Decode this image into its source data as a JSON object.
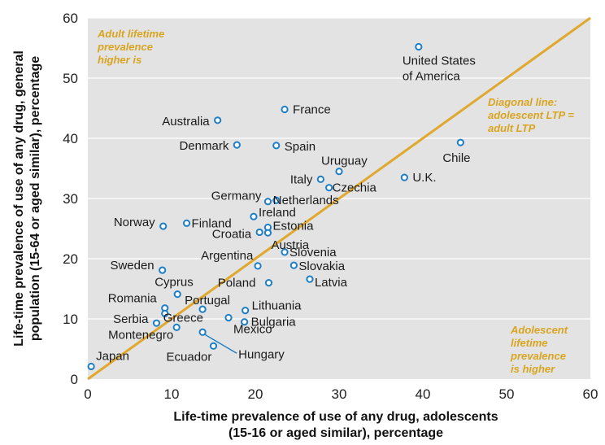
{
  "colors": {
    "plot_background": "#e3e3e3",
    "diagonal": "#e0a82e",
    "points": "#1f7fc6",
    "annotation": "#d9a520"
  },
  "annotations": {
    "top_left": [
      "Adult lifetime",
      "prevalence",
      "higher is"
    ],
    "diagonal": [
      "Diagonal line:",
      "adolescent LTP =",
      "adult LTP"
    ],
    "bottom_right": [
      "Adolescent",
      "lifetime",
      "prevalence",
      "is higher"
    ]
  },
  "chart_data": {
    "type": "scatter",
    "title": "",
    "xlabel": [
      "Life-time prevalence of use of any drug, adolescents",
      "(15-16 or aged similar), percentage"
    ],
    "ylabel": [
      "Life-time prevalence of use of any drug, general",
      "population (15-64 or aged similar), percentage"
    ],
    "xlim": [
      0,
      60
    ],
    "ylim": [
      0,
      60
    ],
    "xticks": [
      "0",
      "10",
      "20",
      "30",
      "40",
      "50",
      "60"
    ],
    "yticks": [
      "0",
      "10",
      "20",
      "30",
      "40",
      "50",
      "60"
    ],
    "grid": "horizontal",
    "reference_line": {
      "from": [
        0,
        0
      ],
      "to": [
        60,
        60
      ]
    },
    "points": [
      {
        "label": [
          "United States",
          "of America"
        ],
        "x": 39.5,
        "y": 55.2
      },
      {
        "label": [
          "France"
        ],
        "x": 23.5,
        "y": 44.8
      },
      {
        "label": [
          "Australia"
        ],
        "x": 15.5,
        "y": 43.0
      },
      {
        "label": [
          "Denmark"
        ],
        "x": 17.8,
        "y": 38.9
      },
      {
        "label": [
          "Spain"
        ],
        "x": 22.5,
        "y": 38.8
      },
      {
        "label": [
          "Chile"
        ],
        "x": 44.5,
        "y": 39.3
      },
      {
        "label": [
          "Uruguay"
        ],
        "x": 30.0,
        "y": 34.5
      },
      {
        "label": [
          "U.K."
        ],
        "x": 37.8,
        "y": 33.5
      },
      {
        "label": [
          "Italy"
        ],
        "x": 27.8,
        "y": 33.2
      },
      {
        "label": [
          "Czechia"
        ],
        "x": 28.8,
        "y": 31.8
      },
      {
        "label": [
          "Germany"
        ],
        "x": 21.5,
        "y": 29.5
      },
      {
        "label": [
          "Netherlands"
        ],
        "x": 22.5,
        "y": 29.7
      },
      {
        "label": [
          "Ireland"
        ],
        "x": 19.8,
        "y": 27.0
      },
      {
        "label": [
          "Norway"
        ],
        "x": 9.0,
        "y": 25.4
      },
      {
        "label": [
          "Finland"
        ],
        "x": 11.8,
        "y": 25.9
      },
      {
        "label": [
          "Estonia"
        ],
        "x": 21.5,
        "y": 25.2
      },
      {
        "label": [
          "Croatia"
        ],
        "x": 20.5,
        "y": 24.4
      },
      {
        "label": [
          "Austria"
        ],
        "x": 21.5,
        "y": 24.3
      },
      {
        "label": [
          "Argentina"
        ],
        "x": 20.3,
        "y": 18.8
      },
      {
        "label": [
          "Slovenia"
        ],
        "x": 23.5,
        "y": 21.1
      },
      {
        "label": [
          "Sweden"
        ],
        "x": 8.9,
        "y": 18.1
      },
      {
        "label": [
          "Slovakia"
        ],
        "x": 24.6,
        "y": 18.9
      },
      {
        "label": [
          "Latvia"
        ],
        "x": 26.5,
        "y": 16.6
      },
      {
        "label": [
          "Poland"
        ],
        "x": 21.6,
        "y": 16.0
      },
      {
        "label": [
          "Cyprus"
        ],
        "x": 10.7,
        "y": 14.1
      },
      {
        "label": [
          "Portugal"
        ],
        "x": 13.7,
        "y": 11.6
      },
      {
        "label": [
          "Lithuania"
        ],
        "x": 18.8,
        "y": 11.4
      },
      {
        "label": [
          "Romania"
        ],
        "x": 9.2,
        "y": 11.8
      },
      {
        "label": [
          "Greece"
        ],
        "x": 9.2,
        "y": 10.9
      },
      {
        "label": [
          "Bulgaria"
        ],
        "x": 18.7,
        "y": 9.5
      },
      {
        "label": [
          "Serbia"
        ],
        "x": 8.2,
        "y": 9.3
      },
      {
        "label": [
          "Mexico"
        ],
        "x": 16.8,
        "y": 10.2
      },
      {
        "label": [
          "Montenegro"
        ],
        "x": 10.6,
        "y": 8.6
      },
      {
        "label": [
          "Hungary"
        ],
        "x": 13.7,
        "y": 7.8
      },
      {
        "label": [
          "Ecuador"
        ],
        "x": 15.0,
        "y": 5.5
      },
      {
        "label": [
          "Japan"
        ],
        "x": 0.4,
        "y": 2.1
      }
    ]
  }
}
